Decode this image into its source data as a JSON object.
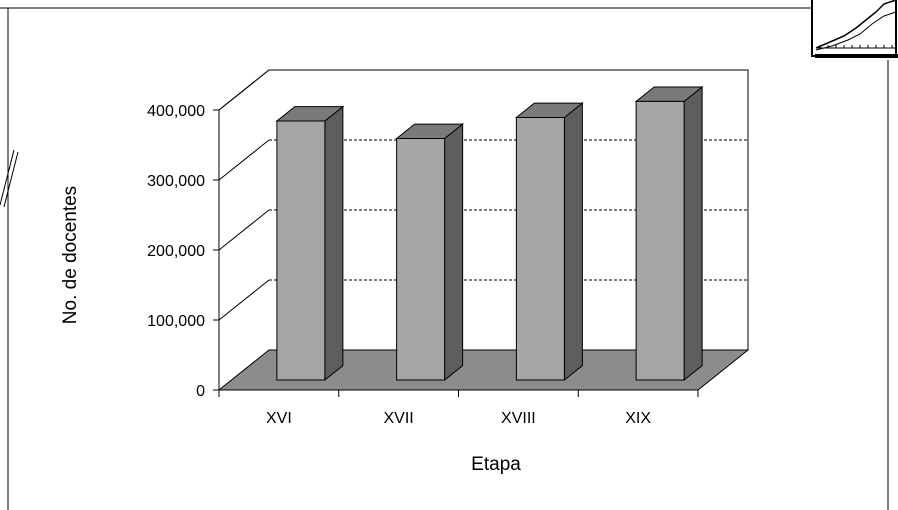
{
  "chart_data": {
    "type": "bar",
    "style": "3d-column",
    "categories": [
      "XVI",
      "XVII",
      "XVIII",
      "XIX"
    ],
    "values": [
      370000,
      345000,
      375000,
      398000
    ],
    "xlabel": "Etapa",
    "ylabel": "No. de docentes",
    "ylim": [
      0,
      400000
    ],
    "yticks": [
      0,
      100000,
      200000,
      300000,
      400000
    ],
    "ytick_labels": [
      "0",
      "100,000",
      "200,000",
      "300,000",
      "400,000"
    ],
    "grid": "horizontal dashed",
    "legend": "none",
    "colors": {
      "bar_front": "#a6a6a6",
      "bar_top": "#7a7a7a",
      "bar_side": "#5e5e5e",
      "floor": "#8c8c8c",
      "gridline": "#000000"
    }
  }
}
